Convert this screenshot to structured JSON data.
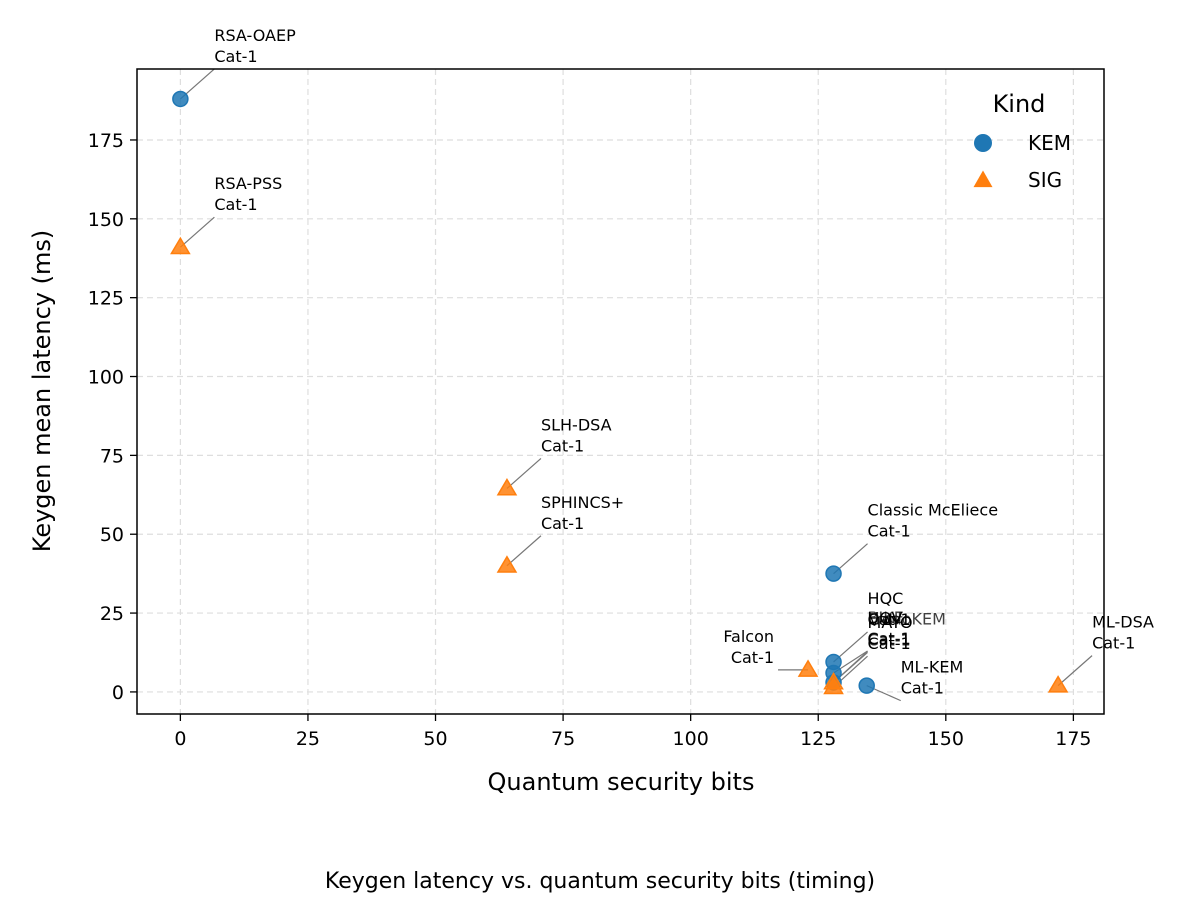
{
  "chart_data": {
    "type": "scatter",
    "caption": "Keygen latency vs. quantum security bits (timing)",
    "xlabel": "Quantum security bits",
    "ylabel": "Keygen mean latency (ms)",
    "xlim": [
      -8.5,
      181
    ],
    "ylim": [
      -7,
      197.5
    ],
    "xticks": [
      0,
      25,
      50,
      75,
      100,
      125,
      150,
      175
    ],
    "yticks": [
      0,
      25,
      50,
      75,
      100,
      125,
      150,
      175
    ],
    "grid": true,
    "legend": {
      "title": "Kind",
      "placement": "top-right",
      "entries": [
        {
          "name": "KEM",
          "marker": "circle",
          "color": "#1f77b4"
        },
        {
          "name": "SIG",
          "marker": "triangle",
          "color": "#ff7f0e"
        }
      ]
    },
    "series": [
      {
        "name": "KEM",
        "color": "#1f77b4",
        "marker": "circle",
        "points": [
          {
            "x": 0,
            "y": 188,
            "label": [
              "RSA-OAEP",
              "Cat-1"
            ]
          },
          {
            "x": 128,
            "y": 37.5,
            "label": [
              "Classic McEliece",
              "Cat-1"
            ]
          },
          {
            "x": 128,
            "y": 9.5,
            "label": [
              "HQC",
              "Cat-1"
            ]
          },
          {
            "x": 128,
            "y": 6,
            "label": [
              "BIKE",
              "Cat-1"
            ]
          },
          {
            "x": 128,
            "y": 3,
            "label": [
              "FrodoKEM",
              "Cat-1"
            ]
          },
          {
            "x": 134.5,
            "y": 2,
            "label": [
              "ML-KEM",
              "Cat-1"
            ]
          }
        ]
      },
      {
        "name": "SIG",
        "color": "#ff7f0e",
        "marker": "triangle",
        "points": [
          {
            "x": 0,
            "y": 141,
            "label": [
              "RSA-PSS",
              "Cat-1"
            ]
          },
          {
            "x": 64,
            "y": 64.5,
            "label": [
              "SLH-DSA",
              "Cat-1"
            ]
          },
          {
            "x": 64,
            "y": 40,
            "label": [
              "SPHINCS+",
              "Cat-1"
            ]
          },
          {
            "x": 172,
            "y": 2,
            "label": [
              "ML-DSA",
              "Cat-1"
            ]
          },
          {
            "x": 123,
            "y": 7,
            "label": [
              "Falcon",
              "Cat-1"
            ]
          },
          {
            "x": 128,
            "y": 3,
            "label": [
              "UOV",
              "Cat-1"
            ]
          },
          {
            "x": 128,
            "y": 1.5,
            "label": [
              "MAYO",
              "Cat-1"
            ]
          }
        ]
      }
    ]
  }
}
